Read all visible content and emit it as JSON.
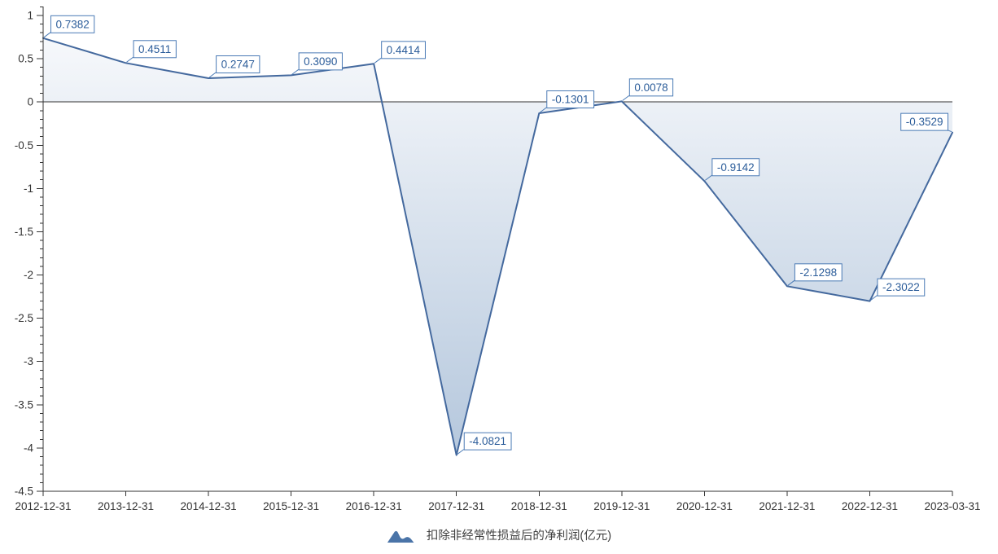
{
  "chart_data": {
    "type": "area",
    "series_name": "扣除非经常性损益后的净利润(亿元)",
    "categories": [
      "2012-12-31",
      "2013-12-31",
      "2014-12-31",
      "2015-12-31",
      "2016-12-31",
      "2017-12-31",
      "2018-12-31",
      "2019-12-31",
      "2020-12-31",
      "2021-12-31",
      "2022-12-31",
      "2023-03-31"
    ],
    "values": [
      0.7382,
      0.4511,
      0.2747,
      0.309,
      0.4414,
      -4.0821,
      -0.1301,
      0.0078,
      -0.9142,
      -2.1298,
      -2.3022,
      -0.3529
    ],
    "point_labels": [
      "0.7382",
      "0.4511",
      "0.2747",
      "0.3090",
      "0.4414",
      "-4.0821",
      "-0.1301",
      "0.0078",
      "-0.9142",
      "-2.1298",
      "-2.3022",
      "-0.3529"
    ],
    "label_sides": [
      "ne",
      "ne",
      "ne",
      "ne",
      "ne",
      "ne",
      "ne",
      "ne",
      "ne",
      "ne",
      "ne",
      "nw"
    ],
    "ylim": [
      -4.5,
      1
    ],
    "y_major_step": 0.5,
    "y_minor_step": 0.1,
    "y_tick_labels": [
      "1",
      "0.5",
      "0",
      "-0.5",
      "-1",
      "-1.5",
      "-2",
      "-2.5",
      "-3",
      "-3.5",
      "-4",
      "-4.5"
    ],
    "grid": false,
    "zero_baseline": true,
    "legend_position": "bottom-center",
    "colors": {
      "line": "#44699e",
      "area_fill_top": "#fafbfd",
      "area_fill_bottom": "#afc3da",
      "label_border": "#4a7ab5",
      "label_text": "#2c5d9a",
      "label_fill": "#ffffff",
      "axis": "#333333",
      "axis_text": "#333333",
      "legend_icon": "#4a74a8"
    }
  }
}
